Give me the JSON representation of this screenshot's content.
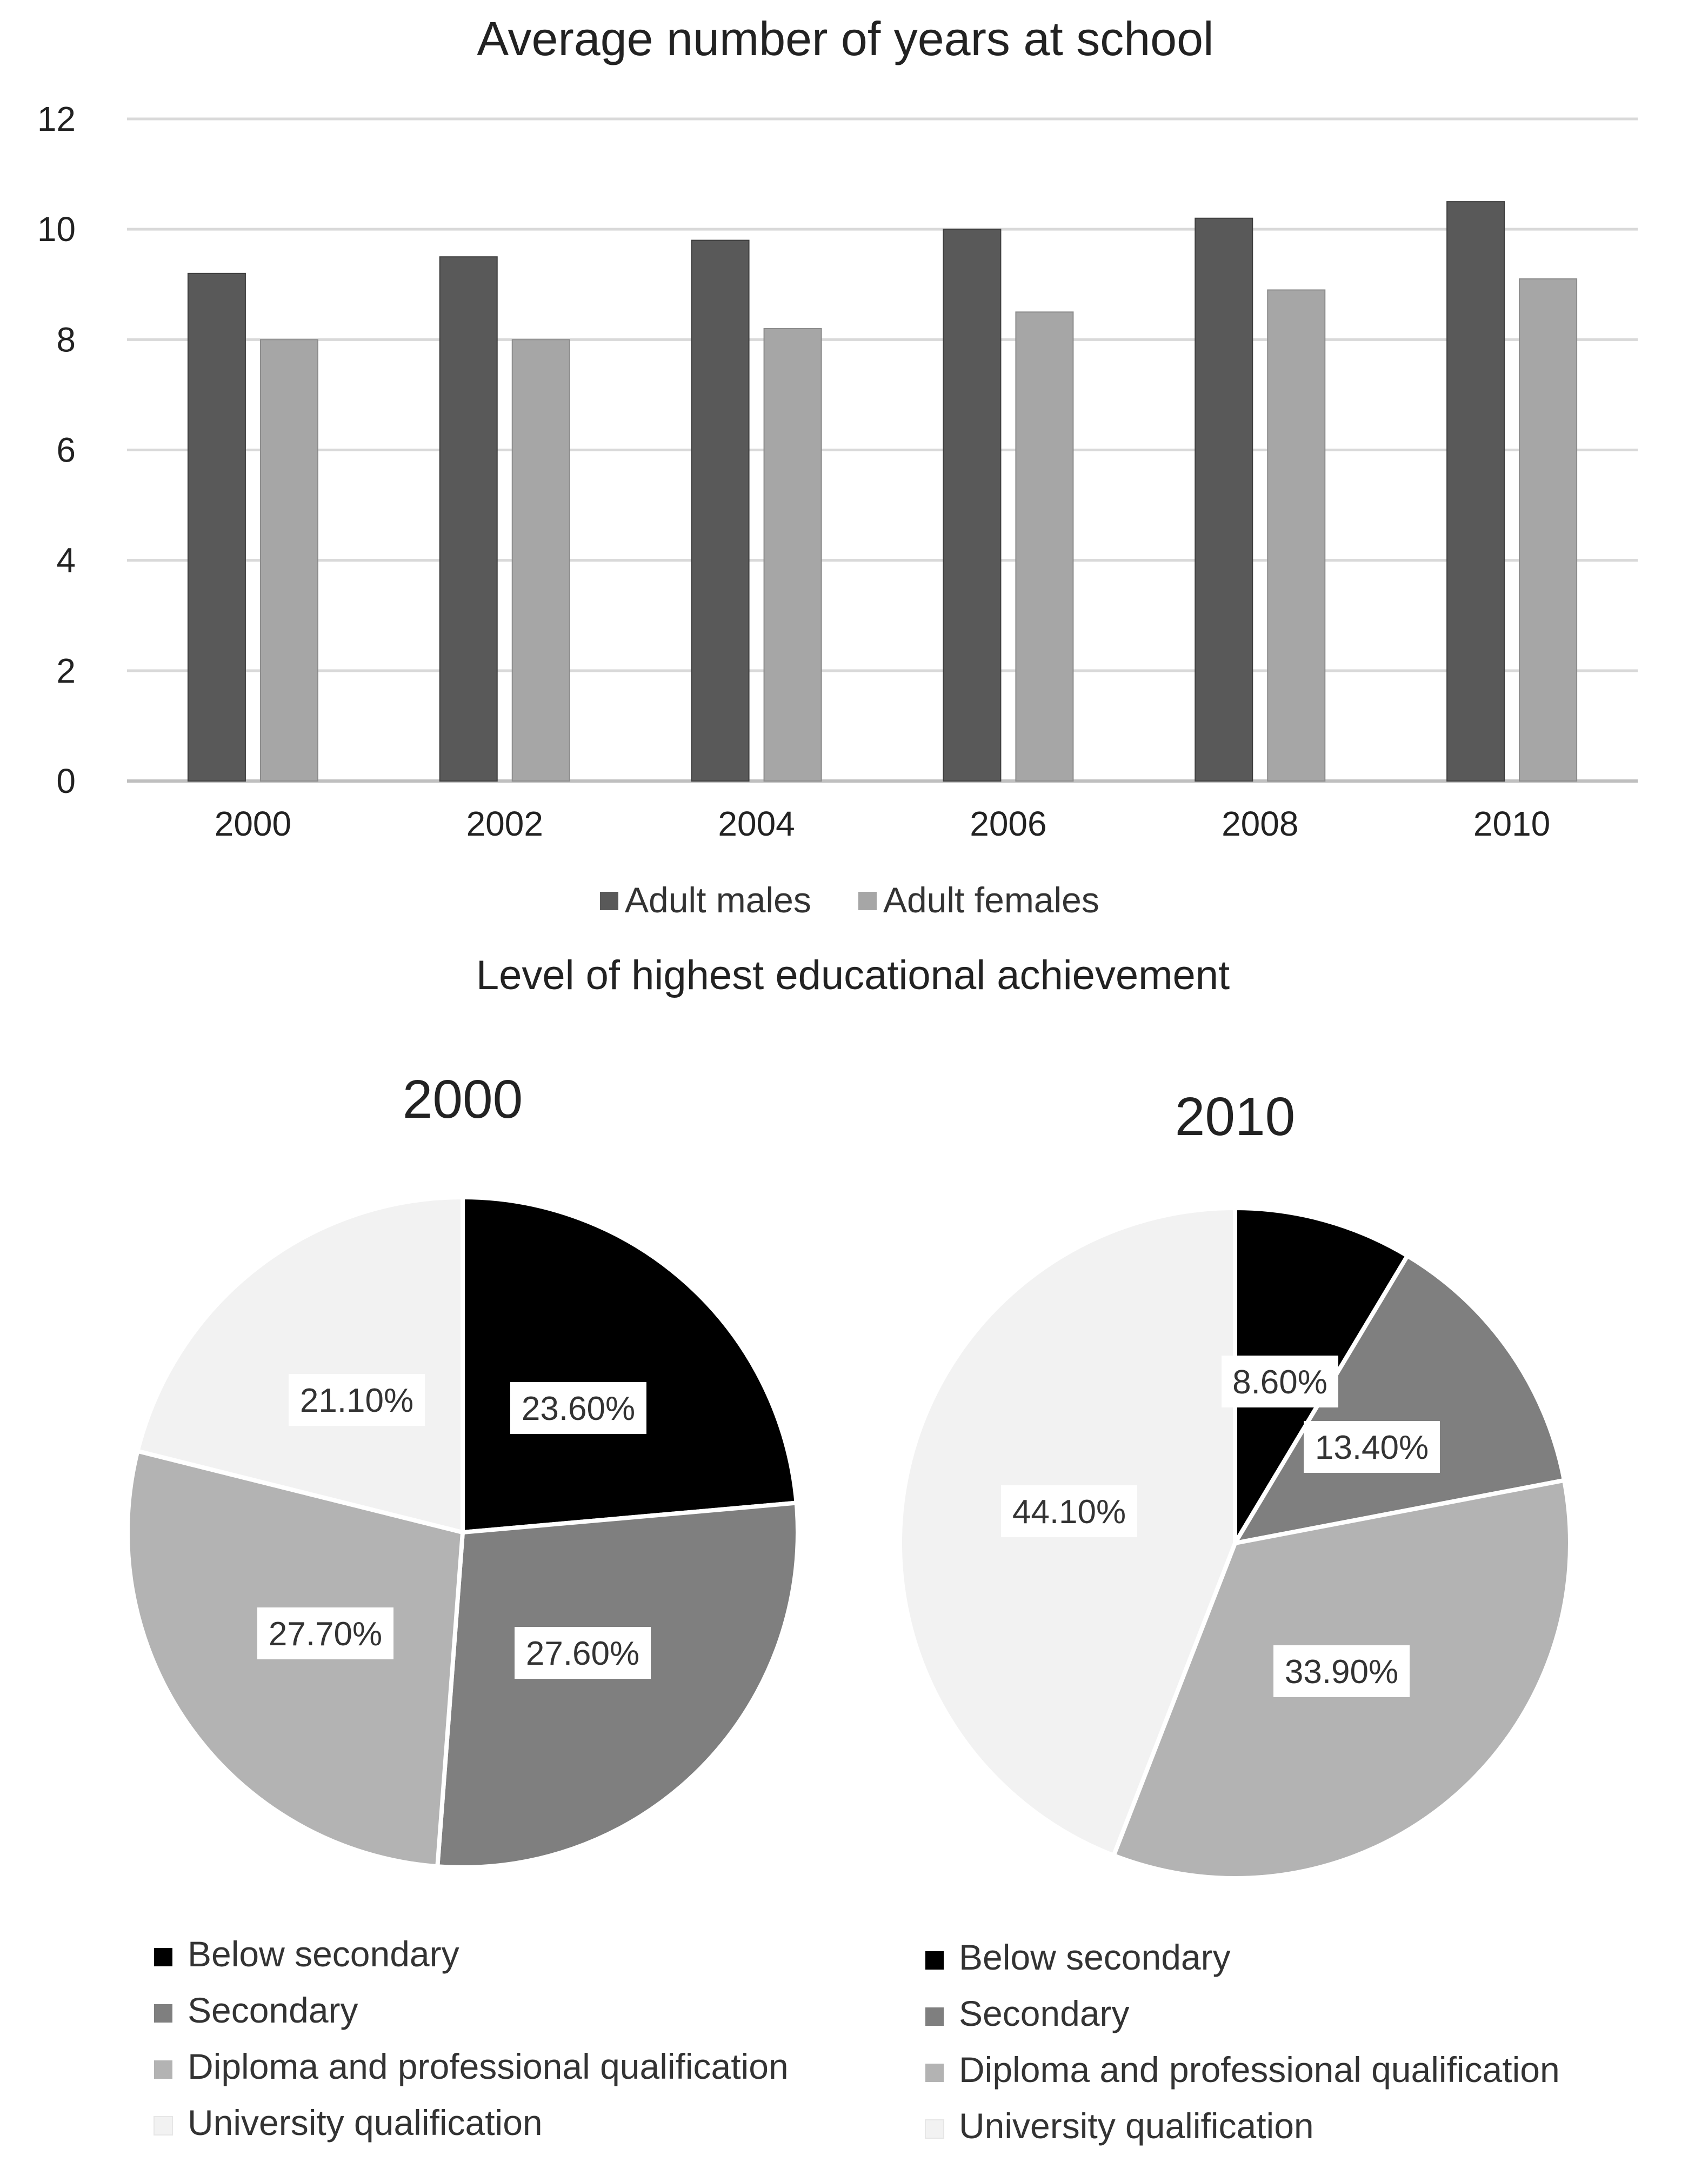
{
  "chart_data": [
    {
      "type": "bar",
      "title": "Average number of years at school",
      "categories": [
        "2000",
        "2002",
        "2004",
        "2006",
        "2008",
        "2010"
      ],
      "series": [
        {
          "name": "Adult males",
          "values": [
            9.2,
            9.5,
            9.8,
            10.0,
            10.2,
            10.5
          ],
          "color": "#595959"
        },
        {
          "name": "Adult females",
          "values": [
            8.0,
            8.0,
            8.2,
            8.5,
            8.9,
            9.1
          ],
          "color": "#a6a6a6"
        }
      ],
      "yticks": [
        "0",
        "2",
        "4",
        "6",
        "8",
        "10",
        "12"
      ],
      "ylim": [
        0,
        12
      ],
      "grid": true,
      "legend": "bottom"
    },
    {
      "type": "pie",
      "section_title": "Level of highest educational achievement",
      "title": "2000",
      "slices": [
        {
          "name": "Below secondary",
          "value": 23.6,
          "label": "23.60%",
          "color": "#000000"
        },
        {
          "name": "Secondary",
          "value": 27.6,
          "label": "27.60%",
          "color": "#7f7f7f"
        },
        {
          "name": "Diploma and professional qualification",
          "value": 27.7,
          "label": "27.70%",
          "color": "#b3b3b3"
        },
        {
          "name": "University qualification",
          "value": 21.1,
          "label": "21.10%",
          "color": "#f2f2f2"
        }
      ],
      "legend": "bottom"
    },
    {
      "type": "pie",
      "title": "2010",
      "slices": [
        {
          "name": "Below secondary",
          "value": 8.6,
          "label": "8.60%",
          "color": "#000000"
        },
        {
          "name": "Secondary",
          "value": 13.4,
          "label": "13.40%",
          "color": "#7f7f7f"
        },
        {
          "name": "Diploma and professional qualification",
          "value": 33.9,
          "label": "33.90%",
          "color": "#b3b3b3"
        },
        {
          "name": "University qualification",
          "value": 44.1,
          "label": "44.10%",
          "color": "#f2f2f2"
        }
      ],
      "legend": "bottom"
    }
  ]
}
